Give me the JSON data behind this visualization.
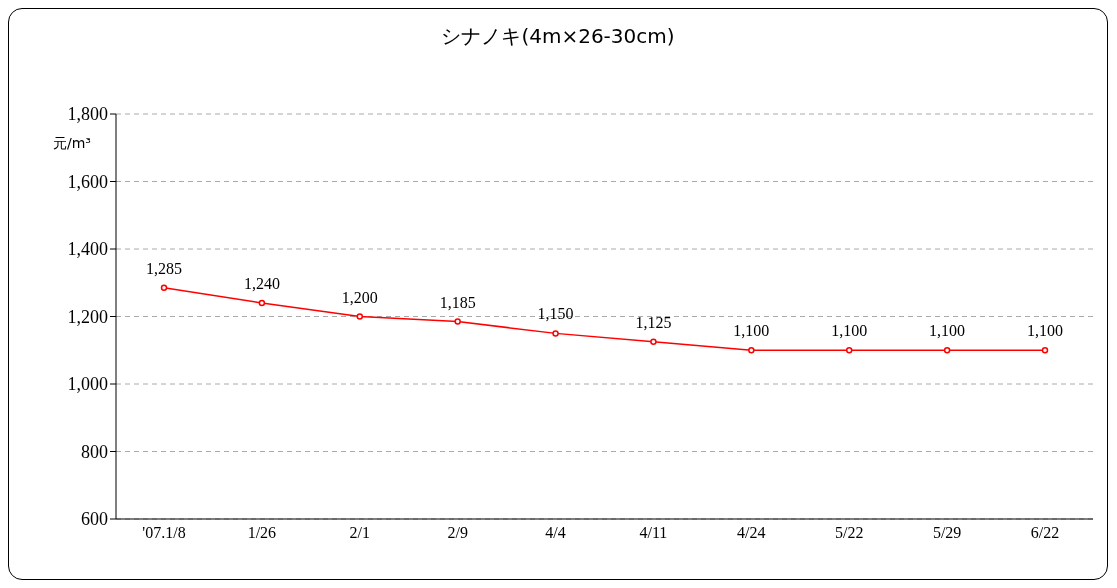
{
  "chart_data": {
    "type": "line",
    "title": "シナノキ(4m×26-30cm)",
    "ylabel": "元/m³",
    "categories": [
      "'07.1/8",
      "1/26",
      "2/1",
      "2/9",
      "4/4",
      "4/11",
      "4/24",
      "5/22",
      "5/29",
      "6/22"
    ],
    "values": [
      1285,
      1240,
      1200,
      1185,
      1150,
      1125,
      1100,
      1100,
      1100,
      1100
    ],
    "value_labels": [
      "1,285",
      "1,240",
      "1,200",
      "1,185",
      "1,150",
      "1,125",
      "1,100",
      "1,100",
      "1,100",
      "1,100"
    ],
    "color": "#ff0000",
    "ylim": [
      600,
      1800
    ],
    "yticks": [
      600,
      800,
      {
        "value": 1000,
        "label": "1,000"
      },
      {
        "value": 1200,
        "label": "1,200"
      },
      {
        "value": 1400,
        "label": "1,400"
      },
      {
        "value": 1600,
        "label": "1,600"
      },
      {
        "value": 1800,
        "label": "1,800"
      }
    ],
    "grid": "y",
    "marker": "circle",
    "line_style": "solid",
    "legend": false
  }
}
